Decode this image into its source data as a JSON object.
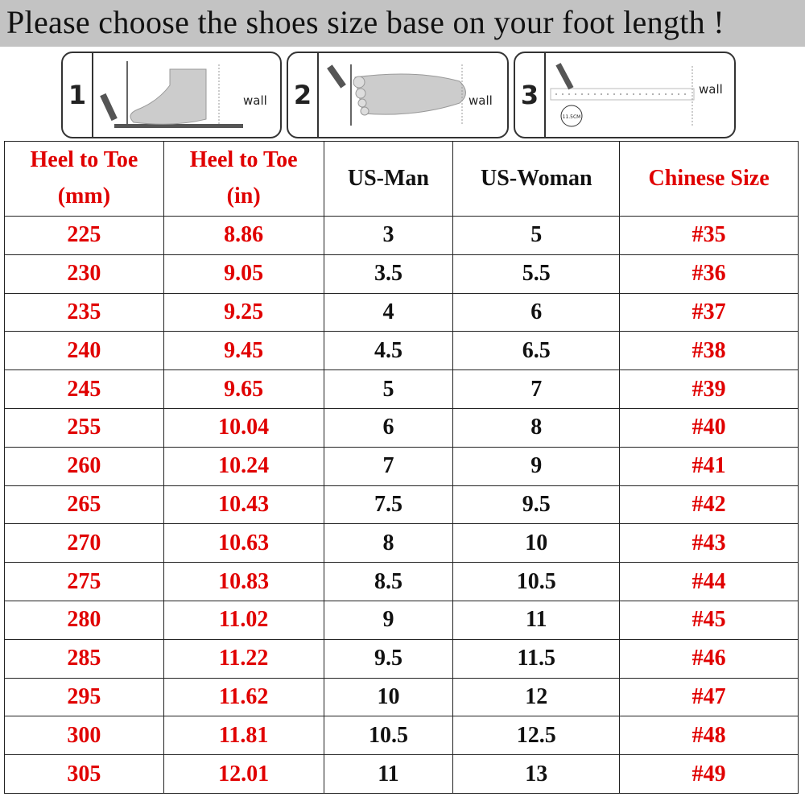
{
  "banner": {
    "title": "Please choose the shoes size base on your foot length !"
  },
  "steps": [
    {
      "number": "1",
      "wall_label": "wall",
      "icon": "foot-side-against-wall"
    },
    {
      "number": "2",
      "wall_label": "wall",
      "icon": "foot-top-against-wall"
    },
    {
      "number": "3",
      "wall_label": "wall",
      "icon": "ruler-measurement",
      "measure_label": "11.5CM"
    }
  ],
  "colors": {
    "accent_red": "#e00000",
    "banner_gray": "#c3c3c3"
  },
  "table": {
    "headers": [
      {
        "line1": "Heel to Toe",
        "line2": "(mm)",
        "color": "red"
      },
      {
        "line1": "Heel to Toe",
        "line2": "(in)",
        "color": "red"
      },
      {
        "line1": "US-Man",
        "line2": "",
        "color": "black"
      },
      {
        "line1": "US-Woman",
        "line2": "",
        "color": "black"
      },
      {
        "line1": "Chinese Size",
        "line2": "",
        "color": "red"
      }
    ],
    "rows": [
      [
        "225",
        "8.86",
        "3",
        "5",
        "#35"
      ],
      [
        "230",
        "9.05",
        "3.5",
        "5.5",
        "#36"
      ],
      [
        "235",
        "9.25",
        "4",
        "6",
        "#37"
      ],
      [
        "240",
        "9.45",
        "4.5",
        "6.5",
        "#38"
      ],
      [
        "245",
        "9.65",
        "5",
        "7",
        "#39"
      ],
      [
        "255",
        "10.04",
        "6",
        "8",
        "#40"
      ],
      [
        "260",
        "10.24",
        "7",
        "9",
        "#41"
      ],
      [
        "265",
        "10.43",
        "7.5",
        "9.5",
        "#42"
      ],
      [
        "270",
        "10.63",
        "8",
        "10",
        "#43"
      ],
      [
        "275",
        "10.83",
        "8.5",
        "10.5",
        "#44"
      ],
      [
        "280",
        "11.02",
        "9",
        "11",
        "#45"
      ],
      [
        "285",
        "11.22",
        "9.5",
        "11.5",
        "#46"
      ],
      [
        "295",
        "11.62",
        "10",
        "12",
        "#47"
      ],
      [
        "300",
        "11.81",
        "10.5",
        "12.5",
        "#48"
      ],
      [
        "305",
        "12.01",
        "11",
        "13",
        "#49"
      ]
    ]
  }
}
